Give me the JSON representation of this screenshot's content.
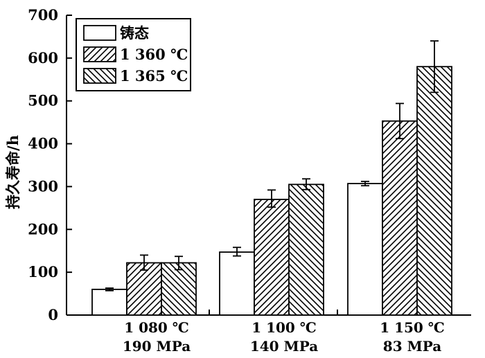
{
  "chart_data": {
    "type": "bar",
    "title": "",
    "xlabel": "",
    "ylabel": "持久寿命/h",
    "ylim": [
      0,
      700
    ],
    "yticks": [
      0,
      100,
      200,
      300,
      400,
      500,
      600,
      700
    ],
    "grid": false,
    "legend_position": "top-left",
    "categories": [
      [
        "1 080 ℃",
        "190 MPa"
      ],
      [
        "1 100 ℃",
        "140 MPa"
      ],
      [
        "1 150 ℃",
        "83 MPa"
      ]
    ],
    "series": [
      {
        "name": "铸态",
        "pattern": "none",
        "values": [
          60,
          147,
          307
        ],
        "error": [
          [
            57,
            63
          ],
          [
            138,
            158
          ],
          [
            302,
            312
          ]
        ]
      },
      {
        "name": "1 360 ℃",
        "pattern": "diagonal-right",
        "values": [
          122,
          270,
          453
        ],
        "error": [
          [
            105,
            140
          ],
          [
            252,
            292
          ],
          [
            412,
            494
          ]
        ]
      },
      {
        "name": "1 365 ℃",
        "pattern": "diagonal-left",
        "values": [
          122,
          305,
          580
        ],
        "error": [
          [
            106,
            137
          ],
          [
            293,
            318
          ],
          [
            520,
            640
          ]
        ]
      }
    ]
  }
}
